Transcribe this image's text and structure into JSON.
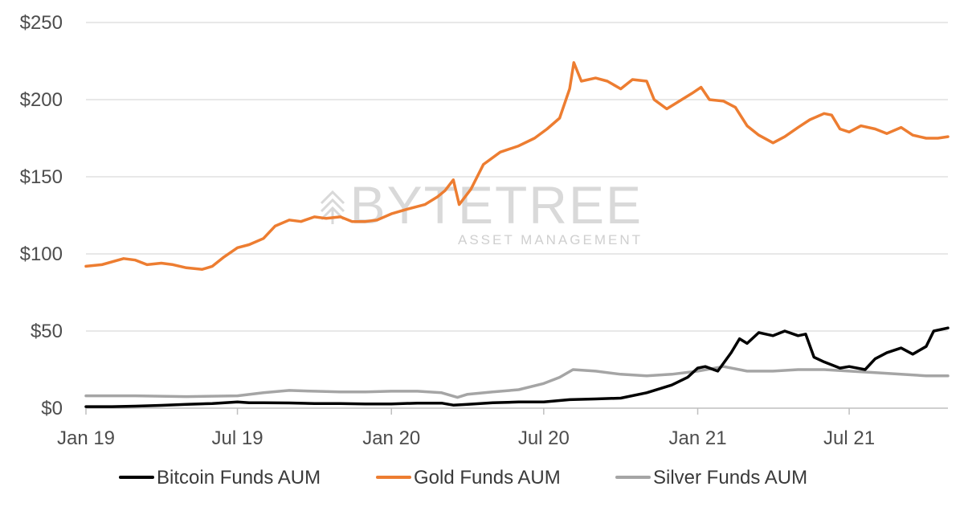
{
  "watermark": {
    "brand": "BYTETREE",
    "subtitle": "ASSET MANAGEMENT"
  },
  "chart_data": {
    "type": "line",
    "title": "",
    "xlabel": "",
    "ylabel": "",
    "ylim": [
      0,
      250
    ],
    "yticks": [
      {
        "value": 0,
        "label": "$0"
      },
      {
        "value": 50,
        "label": "$50"
      },
      {
        "value": 100,
        "label": "$100"
      },
      {
        "value": 150,
        "label": "$150"
      },
      {
        "value": 200,
        "label": "$200"
      },
      {
        "value": 250,
        "label": "$250"
      }
    ],
    "xlim": [
      "2019-01-01",
      "2021-10-27"
    ],
    "xticks": [
      {
        "value": "2019-01-01",
        "label": "Jan 19"
      },
      {
        "value": "2019-07-01",
        "label": "Jul 19"
      },
      {
        "value": "2020-01-01",
        "label": "Jan 20"
      },
      {
        "value": "2020-07-01",
        "label": "Jul 20"
      },
      {
        "value": "2021-01-01",
        "label": "Jan 21"
      },
      {
        "value": "2021-07-01",
        "label": "Jul 21"
      }
    ],
    "grid": "horizontal",
    "legend_position": "bottom",
    "series": [
      {
        "name": "Bitcoin Funds AUM",
        "color": "#000000",
        "points": [
          [
            "2019-01-01",
            1
          ],
          [
            "2019-02-01",
            1
          ],
          [
            "2019-03-01",
            1.3
          ],
          [
            "2019-04-01",
            1.8
          ],
          [
            "2019-05-01",
            2.5
          ],
          [
            "2019-06-01",
            3
          ],
          [
            "2019-07-01",
            4
          ],
          [
            "2019-07-15",
            3.5
          ],
          [
            "2019-08-01",
            3.5
          ],
          [
            "2019-09-01",
            3.4
          ],
          [
            "2019-10-01",
            3
          ],
          [
            "2019-11-01",
            3
          ],
          [
            "2019-12-01",
            2.7
          ],
          [
            "2020-01-01",
            2.7
          ],
          [
            "2020-02-01",
            3.3
          ],
          [
            "2020-03-01",
            3.3
          ],
          [
            "2020-03-15",
            2
          ],
          [
            "2020-04-01",
            2.5
          ],
          [
            "2020-05-01",
            3.5
          ],
          [
            "2020-06-01",
            4
          ],
          [
            "2020-07-01",
            4
          ],
          [
            "2020-08-01",
            5.5
          ],
          [
            "2020-09-01",
            6
          ],
          [
            "2020-10-01",
            6.5
          ],
          [
            "2020-11-01",
            10
          ],
          [
            "2020-12-01",
            15
          ],
          [
            "2020-12-20",
            20
          ],
          [
            "2021-01-01",
            26
          ],
          [
            "2021-01-10",
            27
          ],
          [
            "2021-01-25",
            24
          ],
          [
            "2021-02-10",
            36
          ],
          [
            "2021-02-20",
            45
          ],
          [
            "2021-03-01",
            42
          ],
          [
            "2021-03-15",
            49
          ],
          [
            "2021-04-01",
            47
          ],
          [
            "2021-04-15",
            50
          ],
          [
            "2021-05-01",
            47
          ],
          [
            "2021-05-10",
            48
          ],
          [
            "2021-05-20",
            33
          ],
          [
            "2021-06-01",
            30
          ],
          [
            "2021-06-20",
            26
          ],
          [
            "2021-07-01",
            27
          ],
          [
            "2021-07-20",
            25
          ],
          [
            "2021-08-01",
            32
          ],
          [
            "2021-08-15",
            36
          ],
          [
            "2021-09-01",
            39
          ],
          [
            "2021-09-15",
            35
          ],
          [
            "2021-10-01",
            40
          ],
          [
            "2021-10-10",
            50
          ],
          [
            "2021-10-27",
            52
          ]
        ]
      },
      {
        "name": "Gold Funds AUM",
        "color": "#ed7d31",
        "points": [
          [
            "2019-01-01",
            92
          ],
          [
            "2019-01-20",
            93
          ],
          [
            "2019-02-15",
            97
          ],
          [
            "2019-03-01",
            96
          ],
          [
            "2019-03-15",
            93
          ],
          [
            "2019-04-01",
            94
          ],
          [
            "2019-04-15",
            93
          ],
          [
            "2019-05-01",
            91
          ],
          [
            "2019-05-20",
            90
          ],
          [
            "2019-06-01",
            92
          ],
          [
            "2019-06-15",
            98
          ],
          [
            "2019-07-01",
            104
          ],
          [
            "2019-07-15",
            106
          ],
          [
            "2019-08-01",
            110
          ],
          [
            "2019-08-15",
            118
          ],
          [
            "2019-09-01",
            122
          ],
          [
            "2019-09-15",
            121
          ],
          [
            "2019-10-01",
            124
          ],
          [
            "2019-10-15",
            123
          ],
          [
            "2019-11-01",
            124
          ],
          [
            "2019-11-15",
            121
          ],
          [
            "2019-12-01",
            121
          ],
          [
            "2019-12-15",
            122
          ],
          [
            "2020-01-01",
            126
          ],
          [
            "2020-01-20",
            129
          ],
          [
            "2020-02-10",
            132
          ],
          [
            "2020-02-25",
            137
          ],
          [
            "2020-03-05",
            141
          ],
          [
            "2020-03-15",
            148
          ],
          [
            "2020-03-22",
            132
          ],
          [
            "2020-04-05",
            142
          ],
          [
            "2020-04-20",
            158
          ],
          [
            "2020-05-10",
            166
          ],
          [
            "2020-06-01",
            170
          ],
          [
            "2020-06-20",
            175
          ],
          [
            "2020-07-05",
            181
          ],
          [
            "2020-07-20",
            188
          ],
          [
            "2020-08-01",
            207
          ],
          [
            "2020-08-06",
            224
          ],
          [
            "2020-08-15",
            212
          ],
          [
            "2020-09-01",
            214
          ],
          [
            "2020-09-15",
            212
          ],
          [
            "2020-10-01",
            207
          ],
          [
            "2020-10-15",
            213
          ],
          [
            "2020-11-01",
            212
          ],
          [
            "2020-11-10",
            200
          ],
          [
            "2020-11-25",
            194
          ],
          [
            "2020-12-10",
            199
          ],
          [
            "2020-12-25",
            204
          ],
          [
            "2021-01-05",
            208
          ],
          [
            "2021-01-15",
            200
          ],
          [
            "2021-02-01",
            199
          ],
          [
            "2021-02-15",
            195
          ],
          [
            "2021-03-01",
            183
          ],
          [
            "2021-03-15",
            177
          ],
          [
            "2021-04-01",
            172
          ],
          [
            "2021-04-15",
            176
          ],
          [
            "2021-05-01",
            182
          ],
          [
            "2021-05-15",
            187
          ],
          [
            "2021-06-01",
            191
          ],
          [
            "2021-06-10",
            190
          ],
          [
            "2021-06-20",
            181
          ],
          [
            "2021-07-01",
            179
          ],
          [
            "2021-07-15",
            183
          ],
          [
            "2021-08-01",
            181
          ],
          [
            "2021-08-15",
            178
          ],
          [
            "2021-09-01",
            182
          ],
          [
            "2021-09-15",
            177
          ],
          [
            "2021-10-01",
            175
          ],
          [
            "2021-10-15",
            175
          ],
          [
            "2021-10-27",
            176
          ]
        ]
      },
      {
        "name": "Silver Funds AUM",
        "color": "#a5a5a5",
        "points": [
          [
            "2019-01-01",
            8
          ],
          [
            "2019-03-01",
            8
          ],
          [
            "2019-05-01",
            7.5
          ],
          [
            "2019-07-01",
            8
          ],
          [
            "2019-08-01",
            10
          ],
          [
            "2019-09-01",
            11.5
          ],
          [
            "2019-10-01",
            11
          ],
          [
            "2019-11-01",
            10.5
          ],
          [
            "2019-12-01",
            10.5
          ],
          [
            "2020-01-01",
            11
          ],
          [
            "2020-02-01",
            11
          ],
          [
            "2020-03-01",
            10
          ],
          [
            "2020-03-20",
            7
          ],
          [
            "2020-04-01",
            9
          ],
          [
            "2020-05-01",
            10.5
          ],
          [
            "2020-06-01",
            12
          ],
          [
            "2020-07-01",
            16
          ],
          [
            "2020-07-20",
            20
          ],
          [
            "2020-08-05",
            25
          ],
          [
            "2020-09-01",
            24
          ],
          [
            "2020-10-01",
            22
          ],
          [
            "2020-11-01",
            21
          ],
          [
            "2020-12-01",
            22
          ],
          [
            "2021-01-01",
            24
          ],
          [
            "2021-02-01",
            27
          ],
          [
            "2021-03-01",
            24
          ],
          [
            "2021-04-01",
            24
          ],
          [
            "2021-05-01",
            25
          ],
          [
            "2021-06-01",
            25
          ],
          [
            "2021-07-01",
            24
          ],
          [
            "2021-08-01",
            23
          ],
          [
            "2021-09-01",
            22
          ],
          [
            "2021-10-01",
            21
          ],
          [
            "2021-10-27",
            21
          ]
        ]
      }
    ]
  }
}
